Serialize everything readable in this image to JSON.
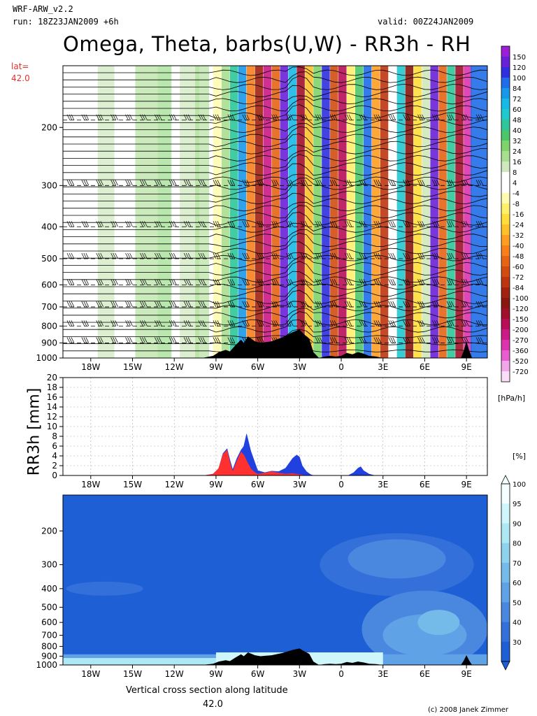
{
  "header": {
    "model": "WRF-ARW_v2.2",
    "run": "run: 18Z23JAN2009 +6h",
    "valid": "valid: 00Z24JAN2009"
  },
  "title": "Omega, Theta, barbs(U,W) - RR3h - RH",
  "lat": {
    "label": "lat=",
    "value": "42.0"
  },
  "footer": {
    "caption_line1": "Vertical cross section along latitude",
    "caption_line2": "42.0",
    "copyright": "(c) 2008 Janek Zimmer"
  },
  "colors": {
    "terrain": "#000000",
    "rain_convective": "#ff3030",
    "rain_total": "#2040e0",
    "rh_background": "#1f5fd6"
  },
  "chart_data": [
    {
      "type": "heatmap",
      "name": "omega_theta_barbs",
      "ylabel_ticks": [
        "200",
        "300",
        "400",
        "500",
        "600",
        "700",
        "800",
        "900",
        "1000"
      ],
      "y_values": [
        200,
        300,
        400,
        500,
        600,
        700,
        800,
        900,
        1000
      ],
      "ylim": [
        130,
        1000
      ],
      "y_scale": "log",
      "xlim": [
        -20,
        10.5
      ],
      "x_values": [
        -18,
        -15,
        -12,
        -9,
        -6,
        -3,
        0,
        3,
        6,
        9
      ],
      "x_ticks": [
        "18W",
        "15W",
        "12W",
        "9W",
        "6W",
        "3W",
        "0",
        "3E",
        "6E",
        "9E"
      ],
      "colorbar": {
        "unit": "[hPa/h]",
        "labels": [
          "150",
          "120",
          "100",
          "84",
          "72",
          "60",
          "48",
          "40",
          "32",
          "24",
          "16",
          "8",
          "4",
          "-4",
          "-8",
          "-16",
          "-24",
          "-32",
          "-40",
          "-48",
          "-60",
          "-72",
          "-84",
          "-100",
          "-120",
          "-150",
          "-200",
          "-270",
          "-360",
          "-520",
          "-720"
        ],
        "colors": [
          "#9c1fd6",
          "#6a20d8",
          "#2f2fe0",
          "#1f6de8",
          "#1898e8",
          "#17b9e6",
          "#20c8d0",
          "#2ec69a",
          "#4cc66a",
          "#7fd36c",
          "#a8de90",
          "#cfe8bd",
          "#ffffff",
          "#ffffff",
          "#fffbb0",
          "#fff06a",
          "#ffdd3a",
          "#ffc02a",
          "#ff9f22",
          "#f7801c",
          "#e66416",
          "#d24c12",
          "#bd3510",
          "#a0220f",
          "#8a1610",
          "#a0102a",
          "#b80e57",
          "#cc1a86",
          "#dc34ad",
          "#e85ed0",
          "#f2a6ea",
          "#fcddf8"
        ]
      }
    },
    {
      "type": "area",
      "name": "rr3h",
      "ylabel": "RR3h [mm]",
      "y_ticks": [
        "0",
        "2",
        "4",
        "6",
        "8",
        "10",
        "12",
        "14",
        "16",
        "18",
        "20"
      ],
      "ylim": [
        0,
        20
      ],
      "xlim": [
        -20,
        10.5
      ],
      "x_ticks": [
        "18W",
        "15W",
        "12W",
        "9W",
        "6W",
        "3W",
        "0",
        "3E",
        "6E",
        "9E"
      ],
      "series": [
        {
          "x": [
            -9.8,
            -9.2,
            -8.8,
            -8.5,
            -8.2,
            -8.0,
            -7.8,
            -7.5,
            -7.2,
            -7.0,
            -6.8,
            -6.5,
            -6.2,
            -6.0,
            -5.5,
            -5.0,
            -4.5,
            -4.0,
            -3.5,
            -3.2,
            -3.0,
            -2.8,
            -2.5,
            -2.2,
            -2.0,
            0.5,
            0.9,
            1.2,
            1.4,
            1.6,
            2.0,
            2.4
          ],
          "values": [
            0,
            0.3,
            1.5,
            4.5,
            5.5,
            3.2,
            1.2,
            3.5,
            5.2,
            6.0,
            8.5,
            5.0,
            2.6,
            1.0,
            0.6,
            0.9,
            0.8,
            1.5,
            3.5,
            4.2,
            3.8,
            2.0,
            0.8,
            0.2,
            0,
            0,
            0.6,
            1.5,
            1.8,
            1.0,
            0.3,
            0
          ]
        },
        {
          "x": [
            -9.8,
            -9.2,
            -8.8,
            -8.5,
            -8.2,
            -8.0,
            -7.8,
            -7.5,
            -7.2,
            -7.0,
            -6.8,
            -6.5,
            -6.2,
            -6.0,
            -5.5,
            -5.0,
            -4.5,
            -4.0,
            -3.5,
            -3.0,
            -2.6
          ],
          "values": [
            0,
            0.3,
            1.5,
            4.3,
            5.2,
            2.6,
            0.8,
            3.0,
            4.8,
            4.2,
            3.0,
            1.4,
            0.6,
            0.3,
            0.5,
            0.8,
            0.5,
            0.3,
            0.4,
            0.2,
            0
          ]
        }
      ]
    },
    {
      "type": "heatmap",
      "name": "relative_humidity",
      "y_ticks": [
        "200",
        "300",
        "400",
        "500",
        "600",
        "700",
        "800",
        "900",
        "1000"
      ],
      "y_values": [
        200,
        300,
        400,
        500,
        600,
        700,
        800,
        900,
        1000
      ],
      "ylim": [
        130,
        1000
      ],
      "y_scale": "log",
      "xlim": [
        -20,
        10.5
      ],
      "x_ticks": [
        "18W",
        "15W",
        "12W",
        "9W",
        "6W",
        "3W",
        "0",
        "3E",
        "6E",
        "9E"
      ],
      "colorbar": {
        "unit": "[%]",
        "labels": [
          "100",
          "95",
          "90",
          "80",
          "70",
          "60",
          "50",
          "40",
          "30"
        ],
        "colors": [
          "#f4feff",
          "#cff6fb",
          "#aee8f4",
          "#8fd2ee",
          "#75bbea",
          "#5fa2e6",
          "#4a88e0",
          "#3470da",
          "#1f5fd6"
        ]
      }
    }
  ],
  "terrain": {
    "x": [
      -20,
      -10.0,
      -9.2,
      -8.8,
      -8.3,
      -8.0,
      -7.6,
      -7.2,
      -7.0,
      -6.7,
      -6.2,
      -5.8,
      -5.0,
      -4.2,
      -3.5,
      -3.0,
      -2.7,
      -2.3,
      -2.0,
      -1.6,
      -1.2,
      -0.8,
      -0.4,
      0,
      0.4,
      0.8,
      1.2,
      1.6,
      2.0,
      2.5,
      3.0,
      8.6,
      8.8,
      9.0,
      9.2,
      9.4,
      10.5
    ],
    "pressure": [
      1000,
      1000,
      985,
      960,
      945,
      955,
      915,
      880,
      900,
      860,
      890,
      900,
      890,
      865,
      835,
      820,
      845,
      875,
      960,
      1000,
      990,
      985,
      990,
      985,
      965,
      975,
      960,
      970,
      985,
      990,
      1000,
      1000,
      950,
      890,
      950,
      1000,
      1000
    ]
  }
}
